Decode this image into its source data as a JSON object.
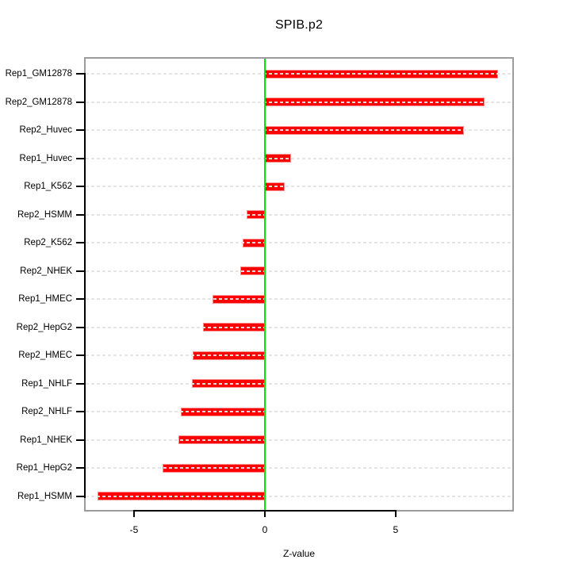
{
  "page": {
    "background": "#ffffff"
  },
  "chart_data": {
    "type": "bar",
    "orientation": "horizontal",
    "title": "SPIB.p2",
    "xlabel": "Z-value",
    "categories": [
      "Rep1_GM12878",
      "Rep2_GM12878",
      "Rep2_Huvec",
      "Rep1_Huvec",
      "Rep1_K562",
      "Rep2_HSMM",
      "Rep2_K562",
      "Rep2_NHEK",
      "Rep1_HMEC",
      "Rep2_HepG2",
      "Rep2_HMEC",
      "Rep1_NHLF",
      "Rep2_NHLF",
      "Rep1_NHEK",
      "Rep1_HepG2",
      "Rep1_HSMM"
    ],
    "values": [
      8.9,
      8.4,
      7.6,
      1.0,
      0.75,
      -0.7,
      -0.85,
      -0.95,
      -2.0,
      -2.35,
      -2.75,
      -2.8,
      -3.2,
      -3.3,
      -3.9,
      -6.4
    ],
    "xlim": [
      -6.91,
      9.52
    ],
    "x_ticks": [
      -5,
      0,
      5
    ],
    "x_tick_labels": [
      "-5",
      "0",
      "5"
    ],
    "zero_line_at": 0,
    "grid": "dashed horizontal line per category row",
    "legend": "none",
    "colors": {
      "bar_fill": "#ff0000",
      "bar_border": "#ff8d8d",
      "zero_line": "#00e600",
      "grid_line": "#dcdcdc",
      "box_border": "#9c9c9c",
      "axis_line": "#000000",
      "text": "#000000"
    }
  }
}
